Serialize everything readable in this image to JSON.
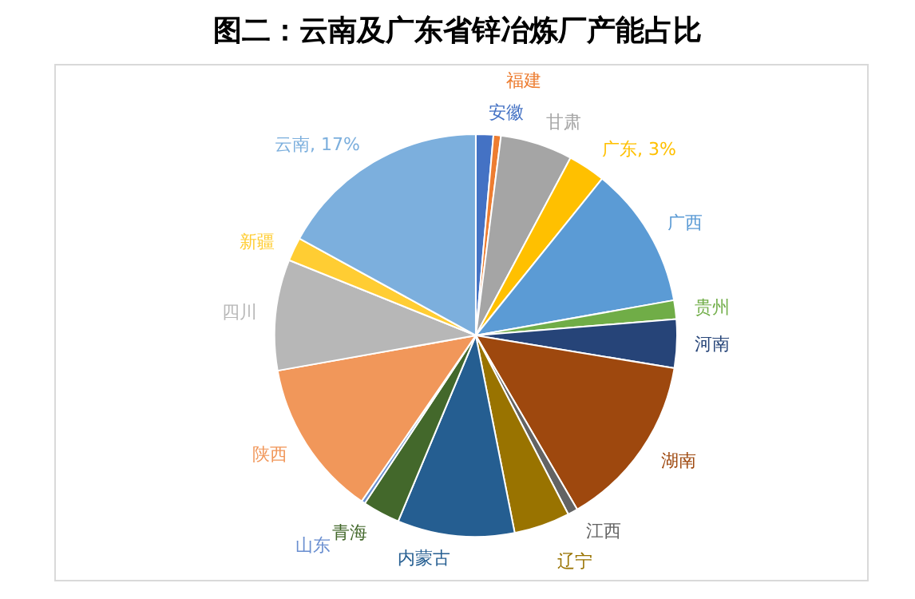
{
  "chart_data": {
    "type": "pie",
    "title": "图二：云南及广东省锌冶炼厂产能占比",
    "categories": [
      "安徽",
      "福建",
      "甘肃",
      "广东",
      "广西",
      "贵州",
      "河南",
      "湖南",
      "江西",
      "辽宁",
      "内蒙古",
      "青海",
      "山东",
      "陕西",
      "四川",
      "新疆",
      "云南"
    ],
    "values": [
      1.4,
      0.6,
      5.8,
      3,
      11.4,
      1.5,
      3.9,
      14,
      0.8,
      4.5,
      9.4,
      3,
      0.3,
      12.6,
      8.9,
      1.9,
      17
    ],
    "value_labels": [
      null,
      null,
      null,
      "3%",
      null,
      null,
      null,
      null,
      null,
      null,
      null,
      null,
      null,
      null,
      null,
      null,
      "17%"
    ],
    "colors": [
      "#4472c4",
      "#ed7d31",
      "#a5a5a5",
      "#ffc000",
      "#5b9bd5",
      "#70ad47",
      "#264478",
      "#9e480e",
      "#636363",
      "#997300",
      "#255e91",
      "#43682b",
      "#698ed0",
      "#f1975a",
      "#b7b7b7",
      "#ffcd33",
      "#7cafdd"
    ],
    "legend": false
  }
}
